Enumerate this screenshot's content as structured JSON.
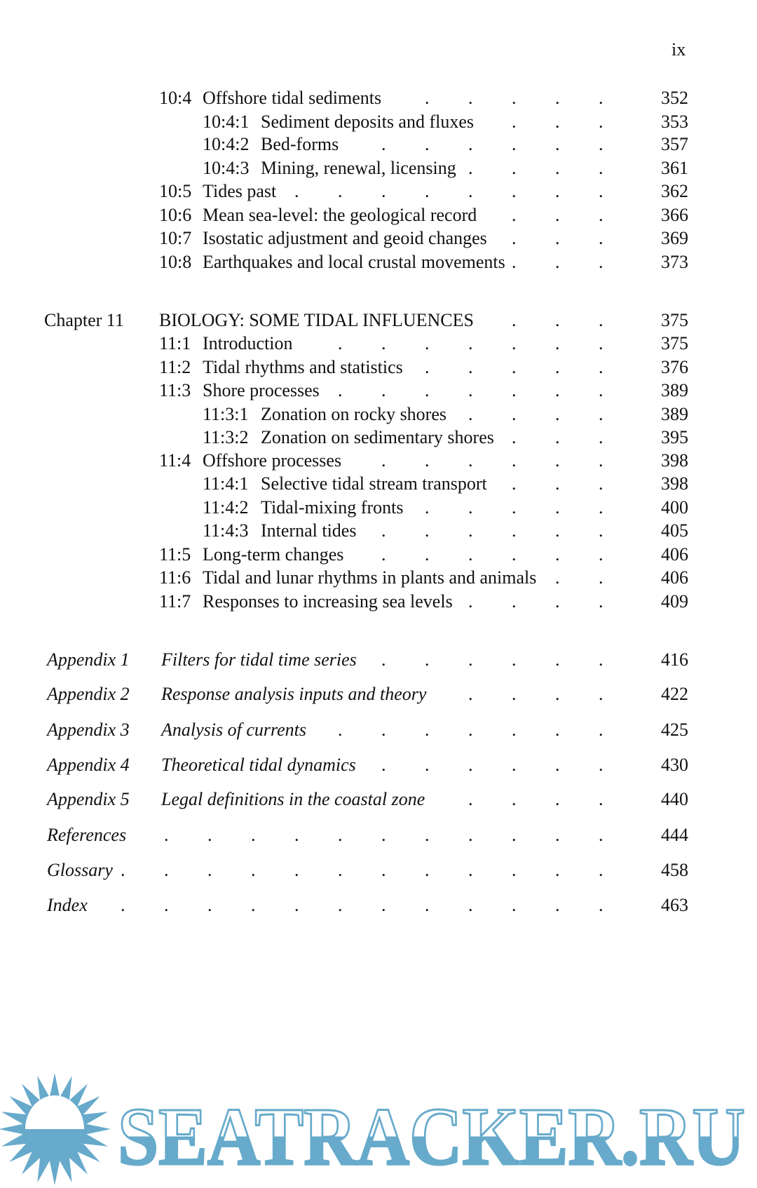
{
  "folio": "ix",
  "entries": [
    {
      "level": 1,
      "num": "10:4",
      "title": "Offshore tidal sediments",
      "page": "352"
    },
    {
      "level": 2,
      "num": "10:4:1",
      "title": "Sediment deposits and fluxes",
      "page": "353"
    },
    {
      "level": 2,
      "num": "10:4:2",
      "title": "Bed-forms",
      "page": "357"
    },
    {
      "level": 2,
      "num": "10:4:3",
      "title": "Mining, renewal, licensing",
      "page": "361"
    },
    {
      "level": 1,
      "num": "10:5",
      "title": "Tides past",
      "page": "362"
    },
    {
      "level": 1,
      "num": "10:6",
      "title": "Mean sea-level: the geological record",
      "page": "366"
    },
    {
      "level": 1,
      "num": "10:7",
      "title": "Isostatic adjustment and geoid changes",
      "page": "369"
    },
    {
      "level": 1,
      "num": "10:8",
      "title": "Earthquakes and local crustal movements",
      "page": "373"
    },
    {
      "level": 0,
      "num": "Chapter 11",
      "title": "BIOLOGY: SOME TIDAL INFLUENCES",
      "page": "375"
    },
    {
      "level": 1,
      "num": "11:1",
      "title": "Introduction",
      "page": "375"
    },
    {
      "level": 1,
      "num": "11:2",
      "title": "Tidal rhythms and statistics",
      "page": "376"
    },
    {
      "level": 1,
      "num": "11:3",
      "title": "Shore processes",
      "page": "389"
    },
    {
      "level": 2,
      "num": "11:3:1",
      "title": "Zonation on rocky shores",
      "page": "389"
    },
    {
      "level": 2,
      "num": "11:3:2",
      "title": "Zonation on sedimentary shores",
      "page": "395"
    },
    {
      "level": 1,
      "num": "11:4",
      "title": "Offshore processes",
      "page": "398"
    },
    {
      "level": 2,
      "num": "11:4:1",
      "title": "Selective tidal stream transport",
      "page": "398"
    },
    {
      "level": 2,
      "num": "11:4:2",
      "title": "Tidal-mixing fronts",
      "page": "400"
    },
    {
      "level": 2,
      "num": "11:4:3",
      "title": "Internal tides",
      "page": "405"
    },
    {
      "level": 1,
      "num": "11:5",
      "title": "Long-term changes",
      "page": "406"
    },
    {
      "level": 1,
      "num": "11:6",
      "title": "Tidal and lunar rhythms in plants and animals",
      "page": "406"
    },
    {
      "level": 1,
      "num": "11:7",
      "title": "Responses to increasing sea levels",
      "page": "409"
    },
    {
      "level": 3,
      "num": "Appendix 1",
      "title": "Filters for tidal time series",
      "page": "416"
    },
    {
      "level": 3,
      "num": "Appendix 2",
      "title": "Response analysis inputs and theory",
      "page": "422"
    },
    {
      "level": 3,
      "num": "Appendix 3",
      "title": "Analysis of currents",
      "page": "425"
    },
    {
      "level": 3,
      "num": "Appendix 4",
      "title": "Theoretical tidal dynamics",
      "page": "430"
    },
    {
      "level": 3,
      "num": "Appendix 5",
      "title": "Legal definitions in the coastal zone",
      "page": "440"
    },
    {
      "level": 4,
      "num": "References",
      "title": "",
      "page": "444"
    },
    {
      "level": 4,
      "num": "Glossary",
      "title": "",
      "page": "458"
    },
    {
      "level": 4,
      "num": "Index",
      "title": "",
      "page": "463"
    }
  ],
  "watermark": {
    "text": "SEATRACKER.RU",
    "color": "#67aacb"
  }
}
